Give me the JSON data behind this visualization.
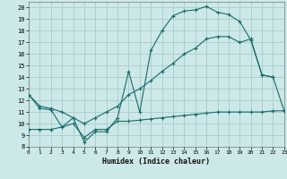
{
  "xlabel": "Humidex (Indice chaleur)",
  "bg_color": "#cce8e8",
  "grid_color": "#aacccc",
  "line_color": "#1a6b6b",
  "line1_x": [
    0,
    1,
    2,
    3,
    4,
    5,
    6,
    7,
    8,
    9,
    10,
    11,
    12,
    13,
    14,
    15,
    16,
    17,
    18,
    19,
    20,
    21,
    22,
    23
  ],
  "line1_y": [
    12.5,
    11.3,
    11.2,
    9.7,
    10.5,
    8.4,
    9.3,
    9.3,
    10.5,
    14.5,
    11.0,
    16.3,
    18.0,
    19.3,
    19.7,
    19.8,
    20.1,
    19.6,
    19.4,
    18.8,
    17.2,
    14.2,
    14.0,
    11.1
  ],
  "line2_x": [
    0,
    1,
    2,
    3,
    4,
    5,
    6,
    7,
    8,
    9,
    10,
    11,
    12,
    13,
    14,
    15,
    16,
    17,
    18,
    19,
    20,
    21,
    22
  ],
  "line2_y": [
    12.5,
    11.5,
    11.3,
    11.0,
    10.5,
    10.0,
    10.5,
    11.0,
    11.5,
    12.5,
    13.0,
    13.7,
    14.5,
    15.2,
    16.0,
    16.5,
    17.3,
    17.5,
    17.5,
    17.0,
    17.3,
    14.2,
    14.0
  ],
  "line3_x": [
    0,
    1,
    2,
    3,
    4,
    5,
    6,
    7,
    8,
    9,
    10,
    11,
    12,
    13,
    14,
    15,
    16,
    17,
    18,
    19,
    20,
    21,
    22,
    23
  ],
  "line3_y": [
    9.5,
    9.5,
    9.5,
    9.7,
    10.0,
    8.8,
    9.5,
    9.5,
    10.2,
    10.2,
    10.3,
    10.4,
    10.5,
    10.6,
    10.7,
    10.8,
    10.9,
    11.0,
    11.0,
    11.0,
    11.0,
    11.0,
    11.1,
    11.1
  ],
  "xlim": [
    0,
    23
  ],
  "ylim": [
    8,
    20.5
  ],
  "yticks": [
    8,
    9,
    10,
    11,
    12,
    13,
    14,
    15,
    16,
    17,
    18,
    19,
    20
  ],
  "xticks": [
    0,
    1,
    2,
    3,
    4,
    5,
    6,
    7,
    8,
    9,
    10,
    11,
    12,
    13,
    14,
    15,
    16,
    17,
    18,
    19,
    20,
    21,
    22,
    23
  ]
}
